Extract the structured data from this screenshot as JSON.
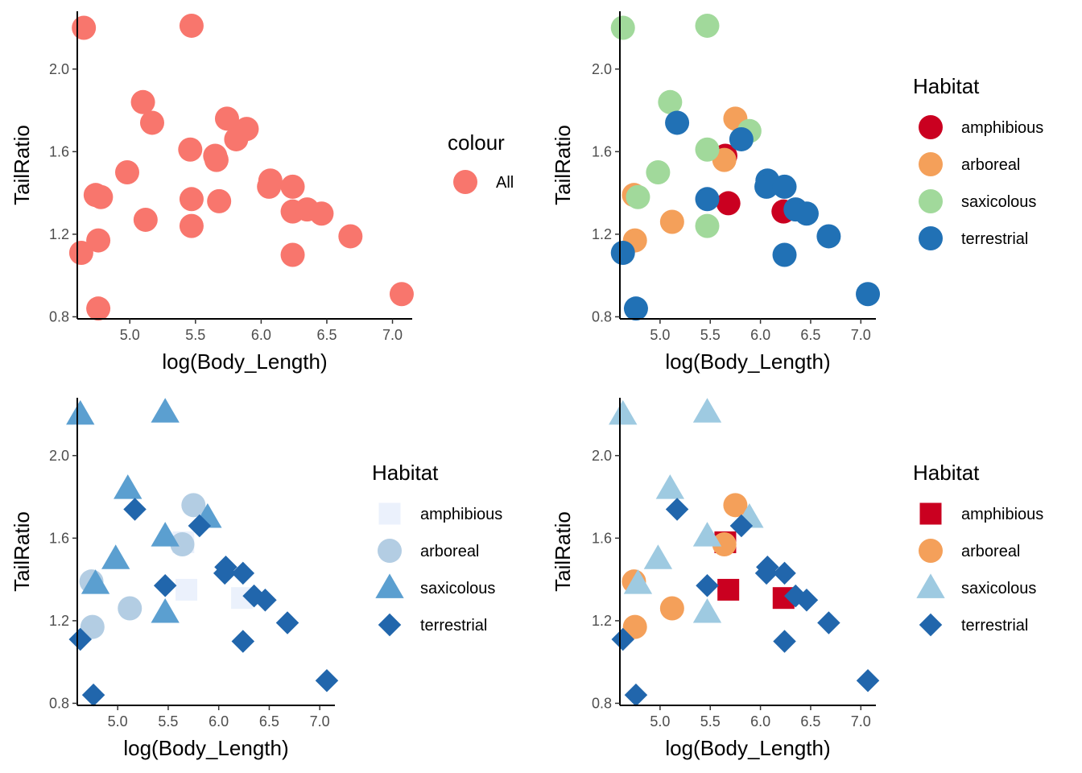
{
  "chart_data": [
    {
      "type": "scatter",
      "xlabel": "log(Body_Length)",
      "ylabel": "TailRatio",
      "xlim": [
        4.6,
        7.15
      ],
      "ylim": [
        0.79,
        2.28
      ],
      "xticks": [
        5.0,
        5.5,
        6.0,
        6.5,
        7.0
      ],
      "xtick_labels": [
        "5.0",
        "5.5",
        "6.0",
        "6.5",
        "7.0"
      ],
      "yticks": [
        0.8,
        1.2,
        1.6,
        2.0
      ],
      "ytick_labels": [
        "0.8",
        "1.2",
        "1.6",
        "2.0"
      ],
      "grid": false,
      "legend": {
        "title": "colour",
        "placement": "right",
        "entries": [
          {
            "label": "All",
            "color": "#F8766D",
            "shape": "circle"
          }
        ]
      },
      "series": [
        {
          "name": "All",
          "color": "#F8766D",
          "shape": "circle",
          "points": [
            [
              4.65,
              2.2
            ],
            [
              5.47,
              2.21
            ],
            [
              5.1,
              1.84
            ],
            [
              5.17,
              1.74
            ],
            [
              5.74,
              1.76
            ],
            [
              5.89,
              1.71
            ],
            [
              5.81,
              1.66
            ],
            [
              5.65,
              1.58
            ],
            [
              5.46,
              1.61
            ],
            [
              5.66,
              1.56
            ],
            [
              4.98,
              1.5
            ],
            [
              6.07,
              1.46
            ],
            [
              6.06,
              1.43
            ],
            [
              6.24,
              1.43
            ],
            [
              6.24,
              1.31
            ],
            [
              4.74,
              1.39
            ],
            [
              4.78,
              1.38
            ],
            [
              5.47,
              1.37
            ],
            [
              5.68,
              1.36
            ],
            [
              6.35,
              1.32
            ],
            [
              6.46,
              1.3
            ],
            [
              5.12,
              1.27
            ],
            [
              5.47,
              1.24
            ],
            [
              4.76,
              1.17
            ],
            [
              4.63,
              1.11
            ],
            [
              6.24,
              1.1
            ],
            [
              6.68,
              1.19
            ],
            [
              7.07,
              0.91
            ],
            [
              4.76,
              0.84
            ]
          ]
        }
      ]
    },
    {
      "type": "scatter",
      "xlabel": "log(Body_Length)",
      "ylabel": "TailRatio",
      "xlim": [
        4.6,
        7.15
      ],
      "ylim": [
        0.79,
        2.28
      ],
      "xticks": [
        5.0,
        5.5,
        6.0,
        6.5,
        7.0
      ],
      "xtick_labels": [
        "5.0",
        "5.5",
        "6.0",
        "6.5",
        "7.0"
      ],
      "yticks": [
        0.8,
        1.2,
        1.6,
        2.0
      ],
      "ytick_labels": [
        "0.8",
        "1.2",
        "1.6",
        "2.0"
      ],
      "grid": false,
      "legend": {
        "title": "Habitat",
        "placement": "right",
        "entries": [
          {
            "label": "amphibious",
            "color": "#CA0020",
            "shape": "circle"
          },
          {
            "label": "arboreal",
            "color": "#F4A05A",
            "shape": "circle"
          },
          {
            "label": "saxicolous",
            "color": "#A1D99B",
            "shape": "circle"
          },
          {
            "label": "terrestrial",
            "color": "#2171B5",
            "shape": "circle"
          }
        ]
      },
      "series": [
        {
          "name": "amphibious",
          "color": "#CA0020",
          "shape": "circle",
          "points": [
            [
              5.65,
              1.58
            ],
            [
              5.68,
              1.35
            ],
            [
              6.23,
              1.31
            ]
          ]
        },
        {
          "name": "arboreal",
          "color": "#F4A05A",
          "shape": "circle",
          "points": [
            [
              5.75,
              1.76
            ],
            [
              5.64,
              1.56
            ],
            [
              4.74,
              1.39
            ],
            [
              4.75,
              1.17
            ],
            [
              5.12,
              1.26
            ]
          ]
        },
        {
          "name": "saxicolous",
          "color": "#A1D99B",
          "shape": "circle",
          "points": [
            [
              4.63,
              2.2
            ],
            [
              5.47,
              2.21
            ],
            [
              5.1,
              1.84
            ],
            [
              5.89,
              1.7
            ],
            [
              5.47,
              1.61
            ],
            [
              4.98,
              1.5
            ],
            [
              4.78,
              1.38
            ],
            [
              5.47,
              1.24
            ]
          ]
        },
        {
          "name": "terrestrial",
          "color": "#2171B5",
          "shape": "circle",
          "points": [
            [
              5.17,
              1.74
            ],
            [
              5.81,
              1.66
            ],
            [
              6.07,
              1.46
            ],
            [
              6.06,
              1.43
            ],
            [
              6.24,
              1.43
            ],
            [
              5.47,
              1.37
            ],
            [
              6.35,
              1.32
            ],
            [
              6.46,
              1.3
            ],
            [
              6.68,
              1.19
            ],
            [
              4.63,
              1.11
            ],
            [
              6.24,
              1.1
            ],
            [
              7.07,
              0.91
            ],
            [
              4.76,
              0.84
            ]
          ]
        }
      ]
    },
    {
      "type": "scatter",
      "xlabel": "log(Body_Length)",
      "ylabel": "TailRatio",
      "xlim": [
        4.6,
        7.15
      ],
      "ylim": [
        0.79,
        2.28
      ],
      "xticks": [
        5.0,
        5.5,
        6.0,
        6.5,
        7.0
      ],
      "xtick_labels": [
        "5.0",
        "5.5",
        "6.0",
        "6.5",
        "7.0"
      ],
      "yticks": [
        0.8,
        1.2,
        1.6,
        2.0
      ],
      "ytick_labels": [
        "0.8",
        "1.2",
        "1.6",
        "2.0"
      ],
      "grid": false,
      "legend": {
        "title": "Habitat",
        "placement": "right",
        "entries": [
          {
            "label": "amphibious",
            "color": "#EBF1FC",
            "shape": "square"
          },
          {
            "label": "arboreal",
            "color": "#B3CDE3",
            "shape": "circle"
          },
          {
            "label": "saxicolous",
            "color": "#5B9FD0",
            "shape": "triangle"
          },
          {
            "label": "terrestrial",
            "color": "#2166AC",
            "shape": "diamond"
          }
        ]
      },
      "series": [
        {
          "name": "amphibious",
          "color": "#EBF1FC",
          "shape": "square",
          "points": [
            [
              5.65,
              1.58
            ],
            [
              5.68,
              1.35
            ],
            [
              6.23,
              1.31
            ]
          ]
        },
        {
          "name": "arboreal",
          "color": "#B3CDE3",
          "shape": "circle",
          "points": [
            [
              5.75,
              1.76
            ],
            [
              5.64,
              1.57
            ],
            [
              4.74,
              1.39
            ],
            [
              4.75,
              1.17
            ],
            [
              5.12,
              1.26
            ]
          ]
        },
        {
          "name": "saxicolous",
          "color": "#5B9FD0",
          "shape": "triangle",
          "points": [
            [
              4.63,
              2.2
            ],
            [
              5.47,
              2.21
            ],
            [
              5.1,
              1.84
            ],
            [
              5.89,
              1.7
            ],
            [
              5.47,
              1.61
            ],
            [
              4.98,
              1.5
            ],
            [
              4.78,
              1.38
            ],
            [
              5.47,
              1.24
            ]
          ]
        },
        {
          "name": "terrestrial",
          "color": "#2166AC",
          "shape": "diamond",
          "points": [
            [
              5.17,
              1.74
            ],
            [
              5.81,
              1.66
            ],
            [
              6.07,
              1.46
            ],
            [
              6.06,
              1.43
            ],
            [
              6.24,
              1.43
            ],
            [
              5.47,
              1.37
            ],
            [
              6.35,
              1.32
            ],
            [
              6.46,
              1.3
            ],
            [
              6.68,
              1.19
            ],
            [
              4.63,
              1.11
            ],
            [
              6.24,
              1.1
            ],
            [
              7.07,
              0.91
            ],
            [
              4.76,
              0.84
            ]
          ]
        }
      ]
    },
    {
      "type": "scatter",
      "xlabel": "log(Body_Length)",
      "ylabel": "TailRatio",
      "xlim": [
        4.6,
        7.15
      ],
      "ylim": [
        0.79,
        2.28
      ],
      "xticks": [
        5.0,
        5.5,
        6.0,
        6.5,
        7.0
      ],
      "xtick_labels": [
        "5.0",
        "5.5",
        "6.0",
        "6.5",
        "7.0"
      ],
      "yticks": [
        0.8,
        1.2,
        1.6,
        2.0
      ],
      "ytick_labels": [
        "0.8",
        "1.2",
        "1.6",
        "2.0"
      ],
      "grid": false,
      "legend": {
        "title": "Habitat",
        "placement": "right",
        "entries": [
          {
            "label": "amphibious",
            "color": "#CA0020",
            "shape": "square"
          },
          {
            "label": "arboreal",
            "color": "#F4A05A",
            "shape": "circle"
          },
          {
            "label": "saxicolous",
            "color": "#9ECAE1",
            "shape": "triangle"
          },
          {
            "label": "terrestrial",
            "color": "#2166AC",
            "shape": "diamond"
          }
        ]
      },
      "series": [
        {
          "name": "amphibious",
          "color": "#CA0020",
          "shape": "square",
          "points": [
            [
              5.65,
              1.58
            ],
            [
              5.68,
              1.35
            ],
            [
              6.23,
              1.31
            ]
          ]
        },
        {
          "name": "arboreal",
          "color": "#F4A05A",
          "shape": "circle",
          "points": [
            [
              5.75,
              1.76
            ],
            [
              5.64,
              1.57
            ],
            [
              4.74,
              1.39
            ],
            [
              4.75,
              1.17
            ],
            [
              5.12,
              1.26
            ]
          ]
        },
        {
          "name": "saxicolous",
          "color": "#9ECAE1",
          "shape": "triangle",
          "points": [
            [
              4.63,
              2.2
            ],
            [
              5.47,
              2.21
            ],
            [
              5.1,
              1.84
            ],
            [
              5.89,
              1.7
            ],
            [
              5.47,
              1.61
            ],
            [
              4.98,
              1.5
            ],
            [
              4.78,
              1.38
            ],
            [
              5.47,
              1.24
            ]
          ]
        },
        {
          "name": "terrestrial",
          "color": "#2166AC",
          "shape": "diamond",
          "points": [
            [
              5.17,
              1.74
            ],
            [
              5.81,
              1.66
            ],
            [
              6.07,
              1.46
            ],
            [
              6.06,
              1.43
            ],
            [
              6.24,
              1.43
            ],
            [
              5.47,
              1.37
            ],
            [
              6.35,
              1.32
            ],
            [
              6.46,
              1.3
            ],
            [
              6.68,
              1.19
            ],
            [
              4.63,
              1.11
            ],
            [
              6.24,
              1.1
            ],
            [
              7.07,
              0.91
            ],
            [
              4.76,
              0.84
            ]
          ]
        }
      ]
    }
  ]
}
